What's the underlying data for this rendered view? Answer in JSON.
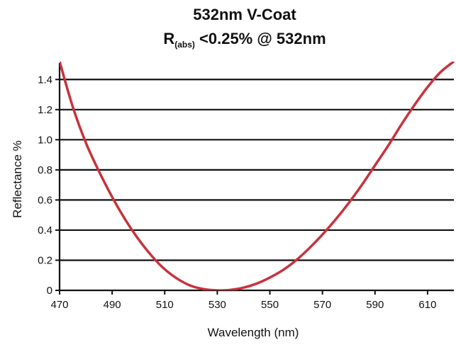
{
  "chart_data": {
    "type": "line",
    "title": "532nm V-Coat",
    "subtitle": {
      "main": "R",
      "sub": "(abs)",
      "rest": " <0.25% @ 532nm"
    },
    "xlabel": "Wavelength (nm)",
    "ylabel": "Reflectance %",
    "xlim": [
      470,
      620
    ],
    "ylim": [
      0,
      1.5
    ],
    "x_ticks": [
      470,
      490,
      510,
      530,
      550,
      570,
      590,
      610
    ],
    "x_tick_labels": [
      "470",
      "490",
      "510",
      "530",
      "550",
      "570",
      "590",
      "610"
    ],
    "y_ticks": [
      0,
      0.2,
      0.4,
      0.6,
      0.8,
      1.0,
      1.2,
      1.4
    ],
    "y_tick_labels": [
      "0",
      "0.2",
      "0.4",
      "0.6",
      "0.8",
      "1.0",
      "1.2",
      "1.4"
    ],
    "grid": "horizontal",
    "line_color": "#c8323c",
    "series": [
      {
        "x": [
          470,
          475,
          480,
          485,
          490,
          495,
          500,
          505,
          510,
          515,
          520,
          525,
          530,
          532,
          535,
          540,
          545,
          550,
          555,
          560,
          565,
          570,
          575,
          580,
          585,
          590,
          595,
          600,
          605,
          610,
          615,
          620
        ],
        "values": [
          1.52,
          1.22,
          0.98,
          0.79,
          0.62,
          0.47,
          0.34,
          0.23,
          0.14,
          0.075,
          0.03,
          0.008,
          0.0,
          0.0,
          0.003,
          0.018,
          0.045,
          0.085,
          0.135,
          0.2,
          0.28,
          0.37,
          0.47,
          0.58,
          0.7,
          0.83,
          0.96,
          1.1,
          1.23,
          1.35,
          1.45,
          1.52
        ]
      }
    ]
  }
}
